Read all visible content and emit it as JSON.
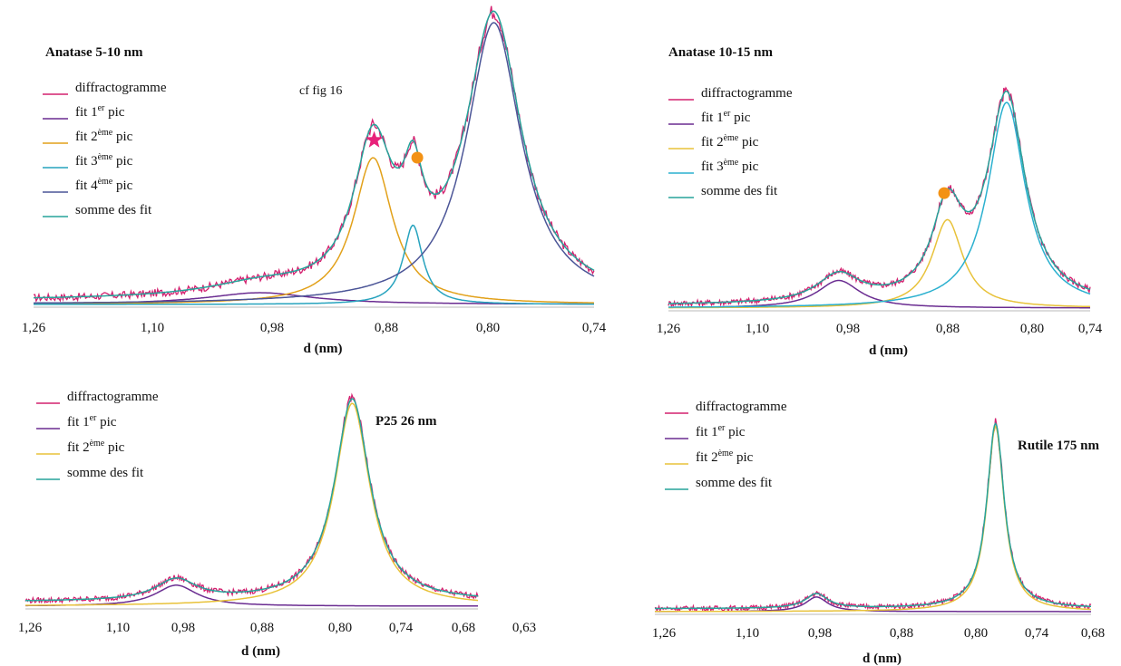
{
  "chart_data": [
    {
      "type": "line",
      "title": "Anatase 5-10 nm",
      "xlabel": "d (nm)",
      "xlim": [
        1.26,
        0.74
      ],
      "ylim": [
        0,
        1
      ],
      "x_ticks": [
        "1,26",
        "1,10",
        "0,98",
        "0,88",
        "0,80",
        "0,74"
      ],
      "legend_position": "top-left",
      "annotations": [
        {
          "text": "cf fig 16"
        }
      ],
      "markers": [
        {
          "type": "star",
          "color": "#e8217a",
          "x": 0.944,
          "y": 0.56
        },
        {
          "type": "dot",
          "color": "#f39214",
          "x": 0.904,
          "y": 0.5
        }
      ],
      "series": [
        {
          "name": "diffractogramme",
          "sup": "",
          "suffix": "",
          "color": "#d4206f",
          "noisy": true
        },
        {
          "name": "fit 1",
          "sup": "er",
          "suffix": " pic",
          "color": "#6a2c91",
          "peaks": [
            [
              1.05,
              0.04,
              0.06
            ]
          ]
        },
        {
          "name": "fit 2",
          "sup": "ème",
          "suffix": " pic",
          "color": "#e2a11a",
          "peaks": [
            [
              0.945,
              0.5,
              0.022
            ]
          ]
        },
        {
          "name": "fit 3",
          "sup": "ème",
          "suffix": " pic",
          "color": "#27a3be",
          "peaks": [
            [
              0.908,
              0.27,
              0.011
            ]
          ]
        },
        {
          "name": "fit 4",
          "sup": "ème",
          "suffix": " pic",
          "color": "#4b5597",
          "peaks": [
            [
              0.833,
              0.96,
              0.031
            ]
          ]
        },
        {
          "name": "somme des fit",
          "sup": "",
          "suffix": "",
          "color": "#26a39a",
          "sum": true
        }
      ]
    },
    {
      "type": "line",
      "title": "Anatase 10-15 nm",
      "xlabel": "d (nm)",
      "xlim": [
        1.26,
        0.74
      ],
      "ylim": [
        0,
        1
      ],
      "x_ticks": [
        "1,26",
        "1,10",
        "0,98",
        "0,88",
        "0,80",
        "0,74"
      ],
      "legend_position": "top-left",
      "annotations": [],
      "markers": [
        {
          "type": "dot",
          "color": "#f39214",
          "x": 0.92,
          "y": 0.52
        }
      ],
      "series": [
        {
          "name": "diffractogramme",
          "sup": "",
          "suffix": "",
          "color": "#d4206f",
          "noisy": true
        },
        {
          "name": "fit 1",
          "sup": "er",
          "suffix": " pic",
          "color": "#6a2c91",
          "peaks": [
            [
              1.05,
              0.125,
              0.032
            ]
          ]
        },
        {
          "name": "fit 2",
          "sup": "ème",
          "suffix": " pic",
          "color": "#e8c23a",
          "peaks": [
            [
              0.916,
              0.4,
              0.023
            ]
          ]
        },
        {
          "name": "fit 3",
          "sup": "ème",
          "suffix": " pic",
          "color": "#2ab0cf",
          "peaks": [
            [
              0.843,
              0.93,
              0.028
            ]
          ]
        },
        {
          "name": "somme des fit",
          "sup": "",
          "suffix": "",
          "color": "#26a39a",
          "sum": true
        }
      ]
    },
    {
      "type": "line",
      "title": "P25 26 nm",
      "xlabel": "d (nm)",
      "xlim": [
        1.26,
        0.63
      ],
      "ylim": [
        0,
        1
      ],
      "x_ticks": [
        "1,26",
        "1,10",
        "0,98",
        "0,88",
        "0,80",
        "0,74",
        "0,68",
        "0,63"
      ],
      "legend_position": "top-left",
      "annotations": [],
      "markers": [],
      "series": [
        {
          "name": "diffractogramme",
          "sup": "",
          "suffix": "",
          "color": "#d4206f",
          "noisy": true
        },
        {
          "name": "fit 1",
          "sup": "er",
          "suffix": " pic",
          "color": "#6a2c91",
          "peaks": [
            [
              1.05,
              0.1,
              0.035
            ]
          ]
        },
        {
          "name": "fit 2",
          "sup": "ème",
          "suffix": " pic",
          "color": "#e8c23a",
          "peaks": [
            [
              0.805,
              0.965,
              0.03
            ]
          ]
        },
        {
          "name": "somme des fit",
          "sup": "",
          "suffix": "",
          "color": "#26a39a",
          "sum": true
        }
      ]
    },
    {
      "type": "line",
      "title": "Rutile 175 nm",
      "xlabel": "d (nm)",
      "xlim": [
        1.26,
        0.68
      ],
      "ylim": [
        0,
        1
      ],
      "x_ticks": [
        "1,26",
        "1,10",
        "0,98",
        "0,88",
        "0,80",
        "0,74",
        "0,68"
      ],
      "legend_position": "top-left",
      "annotations": [],
      "markers": [],
      "series": [
        {
          "name": "diffractogramme",
          "sup": "",
          "suffix": "",
          "color": "#d4206f",
          "noisy": true
        },
        {
          "name": "fit 1",
          "sup": "er",
          "suffix": " pic",
          "color": "#6a2c91",
          "peaks": [
            [
              1.045,
              0.075,
              0.018
            ]
          ]
        },
        {
          "name": "fit 2",
          "sup": "ème",
          "suffix": " pic",
          "color": "#e8c23a",
          "peaks": [
            [
              0.807,
              0.95,
              0.014
            ]
          ]
        },
        {
          "name": "somme des fit",
          "sup": "",
          "suffix": "",
          "color": "#26a39a",
          "sum": true
        }
      ]
    }
  ]
}
